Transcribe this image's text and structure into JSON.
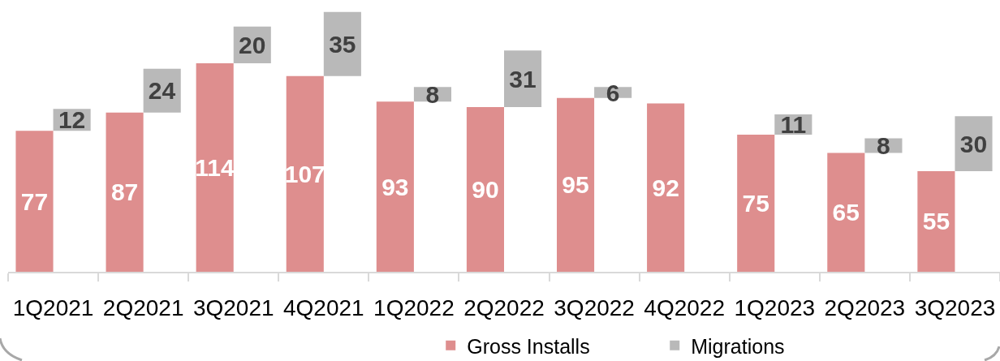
{
  "chart_data": {
    "type": "bar",
    "stacked": true,
    "categories": [
      "1Q2021",
      "2Q2021",
      "3Q2021",
      "4Q2021",
      "1Q2022",
      "2Q2022",
      "3Q2022",
      "4Q2022",
      "1Q2023",
      "2Q2023",
      "3Q2023"
    ],
    "series": [
      {
        "name": "Gross Installs",
        "color": "#de8e8e",
        "values": [
          77,
          87,
          114,
          107,
          93,
          90,
          95,
          92,
          75,
          65,
          55
        ]
      },
      {
        "name": "Migrations",
        "color": "#b9b9b9",
        "values": [
          12,
          24,
          20,
          35,
          8,
          31,
          6,
          null,
          11,
          8,
          30
        ]
      }
    ],
    "data_labels": true,
    "legend": "bottom"
  }
}
